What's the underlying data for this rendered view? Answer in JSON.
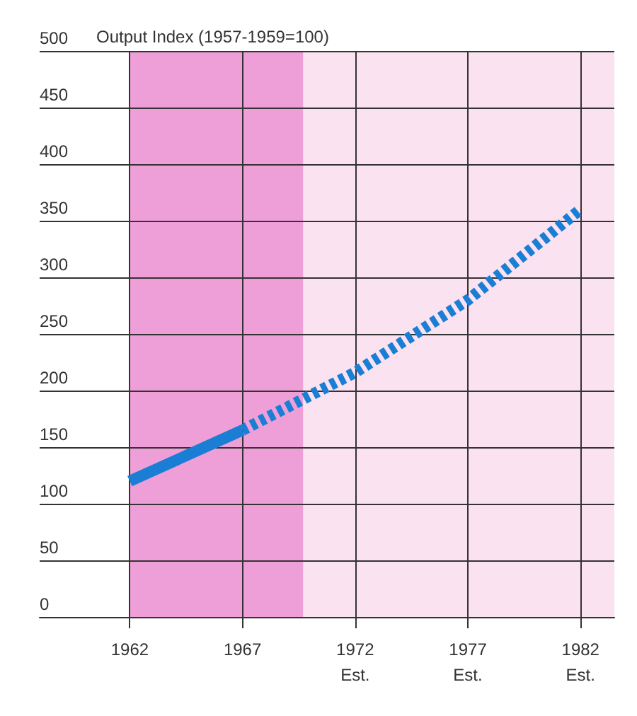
{
  "chart_data": {
    "type": "line",
    "ylabel": "Output Index (1957-1959=100)",
    "series": [
      {
        "color": "#1a7fd4",
        "line_style": "solid",
        "x": [
          1962,
          1967
        ],
        "values": [
          120,
          165
        ]
      },
      {
        "color": "#1a7fd4",
        "line_style": "dashed",
        "x": [
          1967,
          1972,
          1977,
          1982
        ],
        "values": [
          165,
          216,
          280,
          360
        ]
      }
    ],
    "xlim": [
      1958,
      1983.5
    ],
    "xticks": [
      1962,
      1967,
      {
        "value": 1972,
        "label": "1972\nEst."
      },
      {
        "value": 1977,
        "label": "1977\nEst."
      },
      {
        "value": 1982,
        "label": "1982\nEst."
      }
    ],
    "ylim": [
      0,
      500
    ],
    "yticks": [
      0,
      50,
      100,
      150,
      200,
      250,
      300,
      350,
      400,
      450,
      500
    ],
    "bands": [
      {
        "axis": "x",
        "from": 1962,
        "to": 1969.7,
        "color": "#ef9fd8"
      },
      {
        "axis": "x",
        "from": 1969.7,
        "to": 1983.5,
        "color": "#fbe2f0"
      }
    ],
    "grid": true,
    "marker": "none"
  }
}
